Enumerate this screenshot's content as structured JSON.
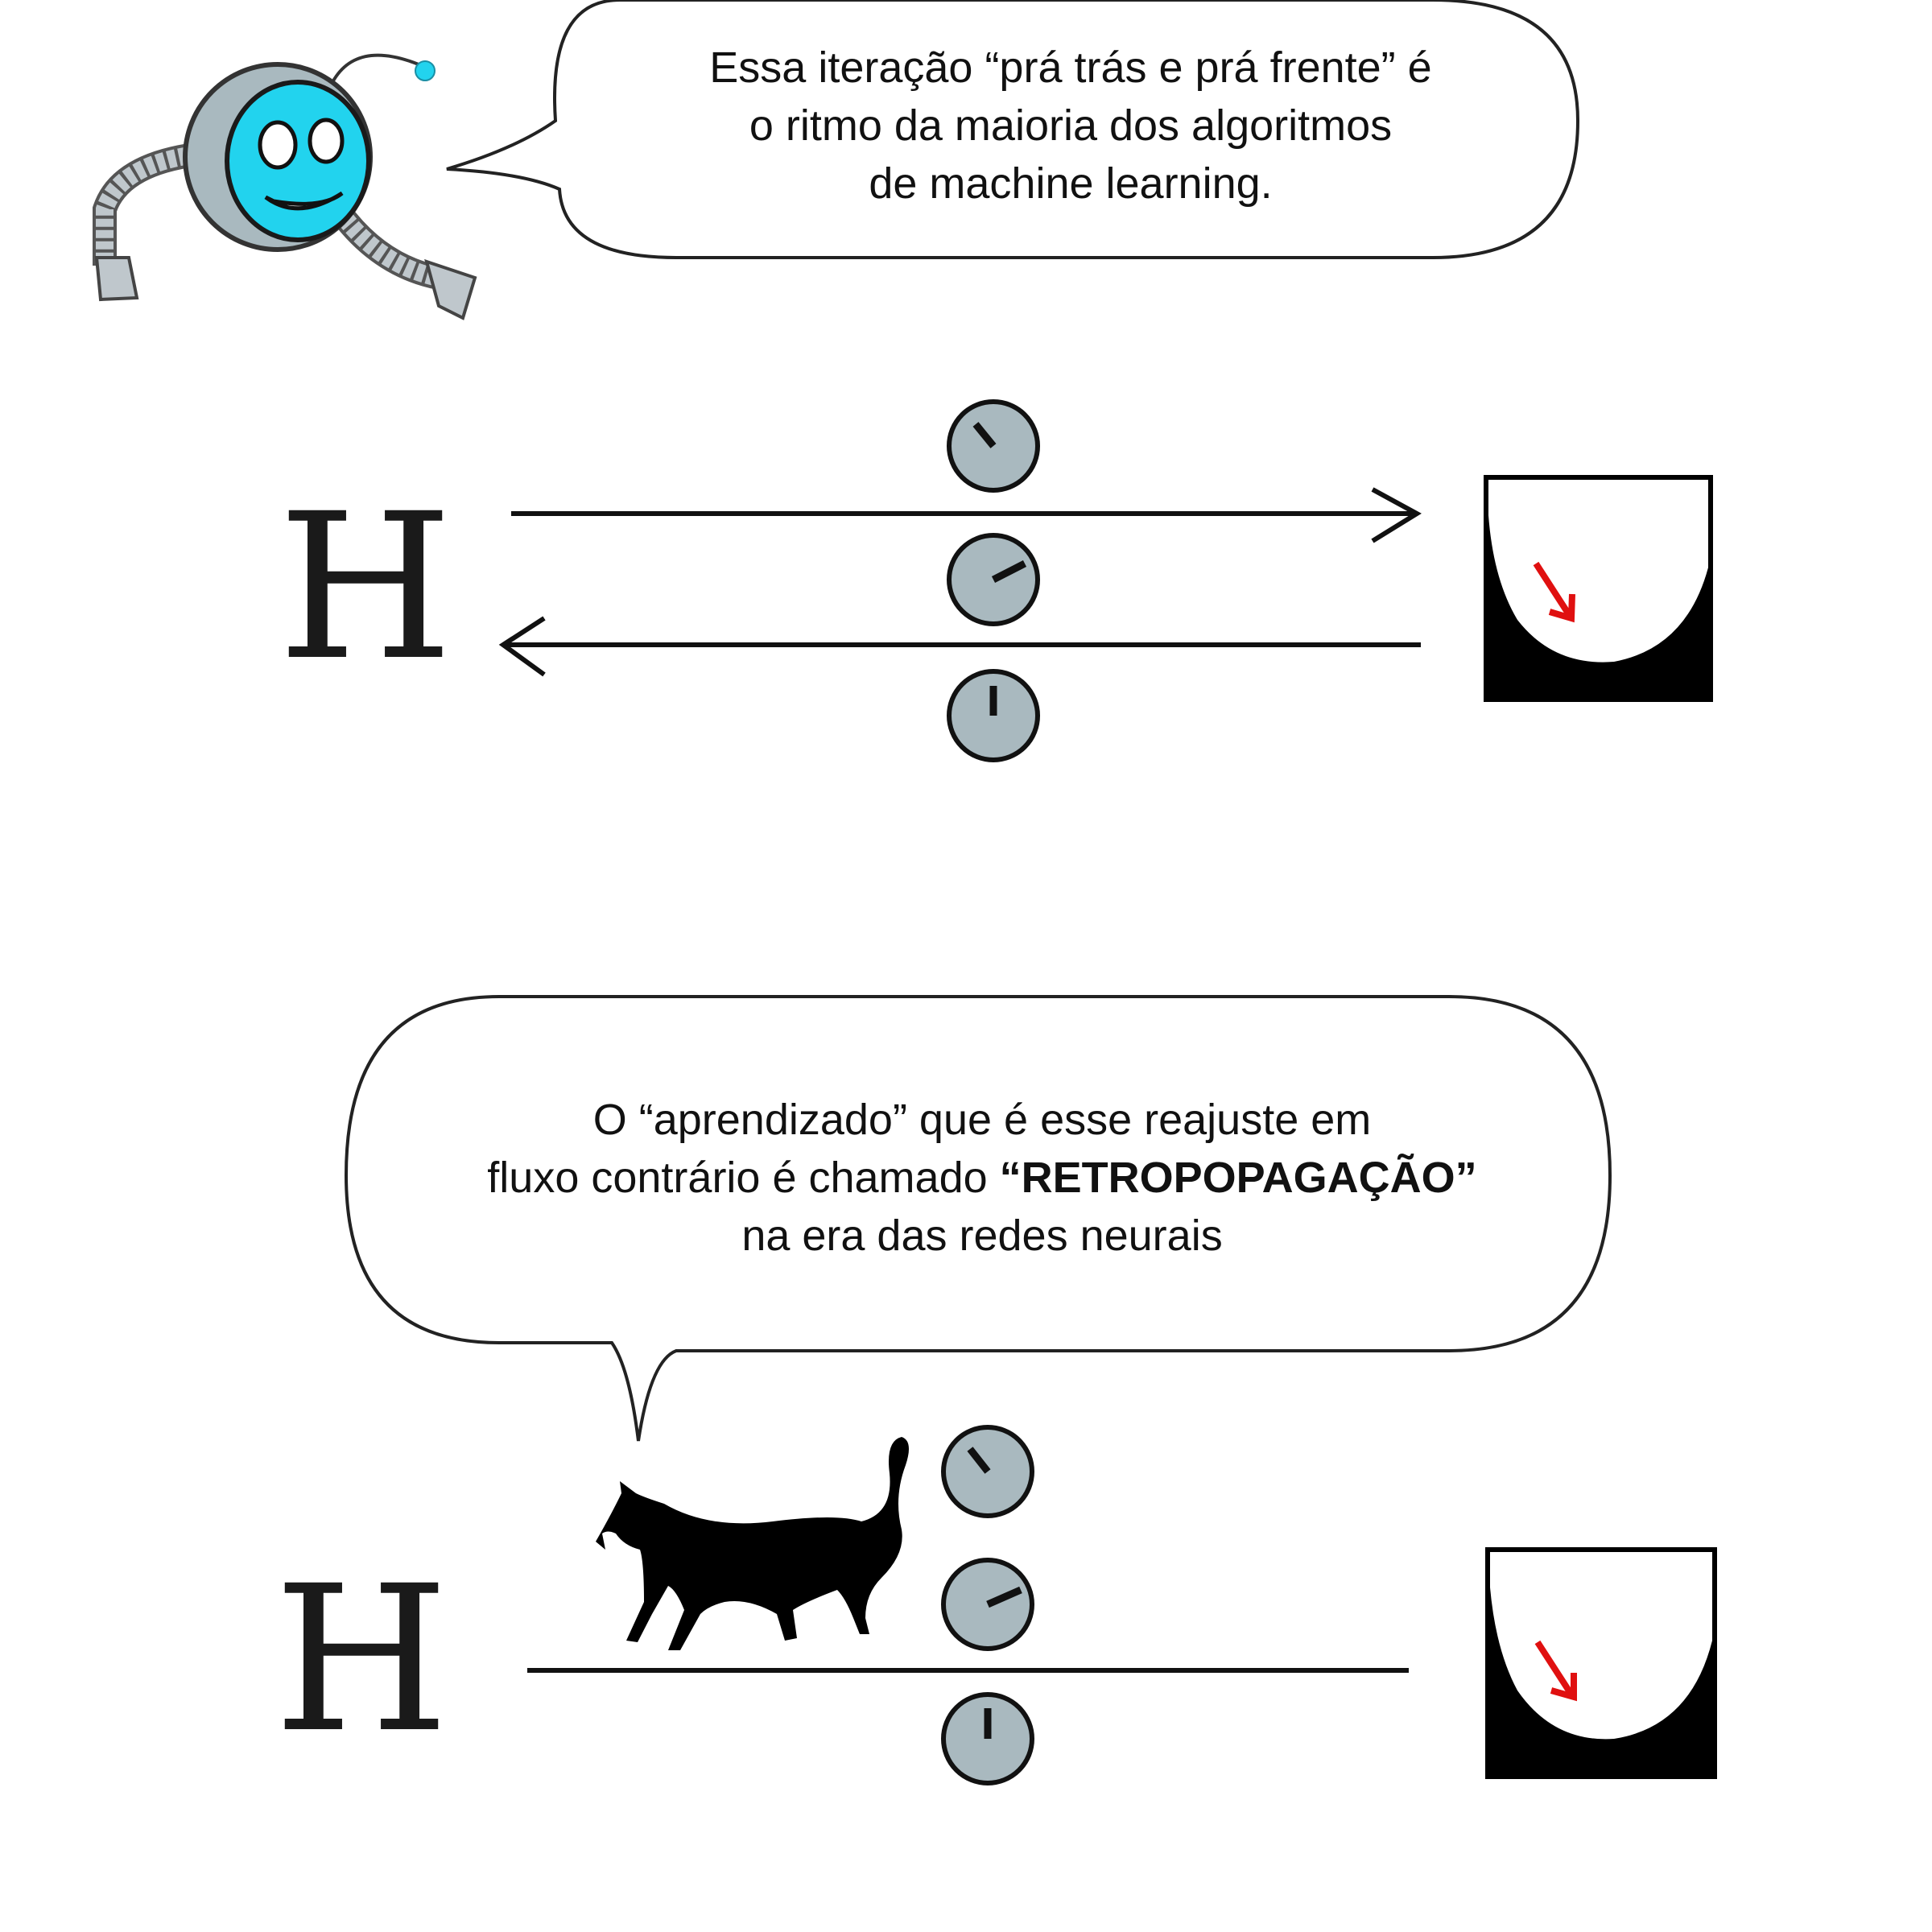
{
  "panel1": {
    "bubble": {
      "lines": [
        "Essa iteração “prá trás e prá frente” é",
        "o ritmo da maioria dos algoritmos",
        "de machine learning."
      ]
    },
    "input_label": "H",
    "loss_box_color": "#000000",
    "gradient_arrow_color": "#e01010",
    "dial_color": "#a9b9bf",
    "robot_face_color": "#22d3ee"
  },
  "panel2": {
    "bubble": {
      "line1": "O “aprendizado” que é esse reajuste em",
      "line2_prefix": "fluxo contrário é chamado ",
      "line2_bold": "“RETROPOPAGAÇÃO”",
      "line3": "na era das redes neurais"
    },
    "input_label": "H",
    "cat_icon": "cat-silhouette-icon"
  }
}
